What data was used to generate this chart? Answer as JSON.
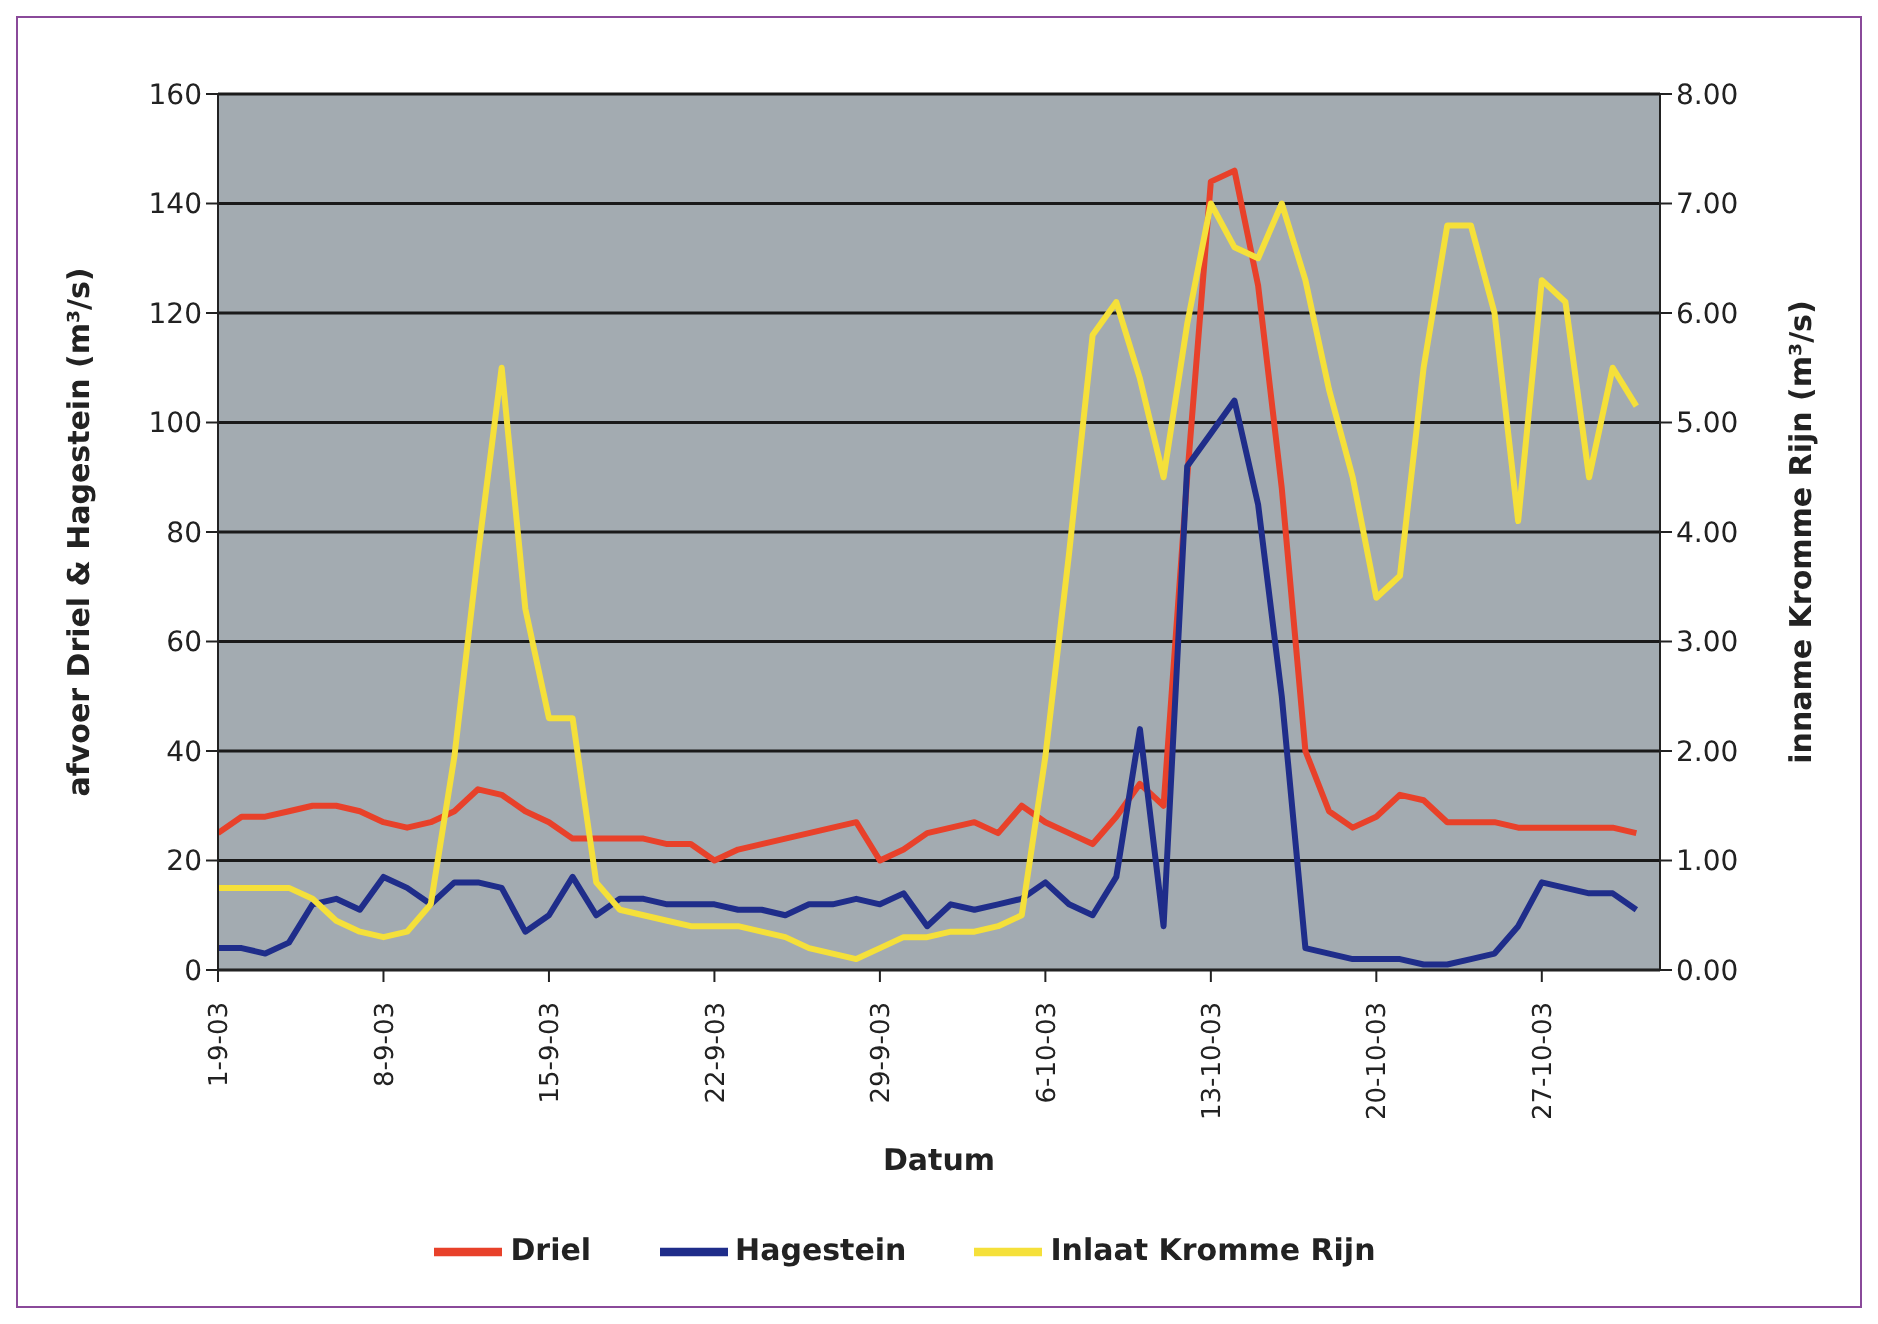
{
  "chart_data": {
    "type": "line",
    "xlabel": "Datum",
    "ylabel": "afvoer Driel & Hagestein (m³/s)",
    "y2label": "inname Kromme Rijn (m³/s)",
    "x": [
      "--09-01",
      "--09-02",
      "--09-03",
      "--09-04",
      "--09-05",
      "--09-06",
      "--09-07",
      "--09-08",
      "--09-09",
      "--09-10",
      "--09-11",
      "--09-12",
      "--09-13",
      "--09-14",
      "--09-15",
      "--09-16",
      "--09-17",
      "--09-18",
      "--09-19",
      "--09-20",
      "--09-21",
      "--09-22",
      "--09-23",
      "--09-24",
      "--09-25",
      "--09-26",
      "--09-27",
      "--09-28",
      "--09-29",
      "--09-30",
      "--10-01",
      "--10-02",
      "--10-03",
      "--10-04",
      "--10-05",
      "--10-06",
      "--10-07",
      "--10-08",
      "--10-09",
      "--10-10",
      "--10-11",
      "--10-12",
      "--10-13",
      "--10-14",
      "--10-15",
      "--10-16",
      "--10-17",
      "--10-18",
      "--10-19",
      "--10-20",
      "--10-21",
      "--10-22",
      "--10-23",
      "--10-24",
      "--10-25",
      "--10-26",
      "--10-27",
      "--10-28",
      "--10-29",
      "--10-30",
      "--10-31"
    ],
    "series": [
      {
        "name": "Driel",
        "color": "#e8412a",
        "values": [
          25,
          28,
          28,
          29,
          30,
          30,
          29,
          27,
          26,
          27,
          29,
          33,
          32,
          29,
          27,
          24,
          24,
          24,
          24,
          23,
          23,
          20,
          22,
          23,
          24,
          25,
          26,
          27,
          20,
          22,
          25,
          26,
          27,
          25,
          30,
          27,
          25,
          23,
          28,
          34,
          30,
          90,
          144,
          146,
          125,
          88,
          40,
          29,
          26,
          28,
          32,
          31,
          27,
          27,
          27,
          26,
          26,
          26,
          26,
          26,
          25
        ]
      },
      {
        "name": "Hagestein",
        "color": "#1f2d8a",
        "values": [
          4,
          4,
          3,
          5,
          12,
          13,
          11,
          17,
          15,
          12,
          16,
          16,
          15,
          7,
          10,
          17,
          10,
          13,
          13,
          12,
          12,
          12,
          11,
          11,
          10,
          12,
          12,
          13,
          12,
          14,
          8,
          12,
          11,
          12,
          13,
          16,
          12,
          10,
          17,
          44,
          8,
          92,
          98,
          104,
          85,
          50,
          4,
          3,
          2,
          2,
          2,
          1,
          1,
          2,
          3,
          8,
          16,
          15,
          14,
          14,
          11
        ]
      },
      {
        "name": "Inlaat Kromme Rijn",
        "color": "#f5e03a",
        "axis": "y2",
        "values": [
          0.75,
          0.75,
          0.75,
          0.75,
          0.65,
          0.45,
          0.35,
          0.3,
          0.35,
          0.6,
          1.95,
          3.8,
          5.5,
          3.3,
          2.3,
          2.3,
          0.8,
          0.55,
          0.5,
          0.45,
          0.4,
          0.4,
          0.4,
          0.35,
          0.3,
          0.2,
          0.15,
          0.1,
          0.2,
          0.3,
          0.3,
          0.35,
          0.35,
          0.4,
          0.5,
          1.95,
          3.8,
          5.8,
          6.1,
          5.4,
          4.5,
          5.9,
          7.0,
          6.6,
          6.5,
          7.0,
          6.3,
          5.3,
          4.5,
          3.4,
          3.6,
          5.5,
          6.8,
          6.8,
          6.0,
          4.1,
          6.3,
          6.1,
          4.5,
          5.5,
          5.15
        ]
      }
    ],
    "xlim": [
      "--09-01",
      "--11-01"
    ],
    "xticks": [
      {
        "value": "--09-01",
        "label": "1-9-03"
      },
      {
        "value": "--09-08",
        "label": "8-9-03"
      },
      {
        "value": "--09-15",
        "label": "15-9-03"
      },
      {
        "value": "--09-22",
        "label": "22-9-03"
      },
      {
        "value": "--09-29",
        "label": "29-9-03"
      },
      {
        "value": "--10-06",
        "label": "6-10-03"
      },
      {
        "value": "--10-13",
        "label": "13-10-03"
      },
      {
        "value": "--10-20",
        "label": "20-10-03"
      },
      {
        "value": "--10-27",
        "label": "27-10-03"
      }
    ],
    "ylim": [
      0,
      160
    ],
    "yticks": [
      0,
      20,
      40,
      60,
      80,
      100,
      120,
      140,
      160
    ],
    "y2lim": [
      0,
      8
    ],
    "y2ticks": [
      {
        "value": 0,
        "label": "0.00"
      },
      {
        "value": 1,
        "label": "1.00"
      },
      {
        "value": 2,
        "label": "2.00"
      },
      {
        "value": 3,
        "label": "3.00"
      },
      {
        "value": 4,
        "label": "4.00"
      },
      {
        "value": 5,
        "label": "5.00"
      },
      {
        "value": 6,
        "label": "6.00"
      },
      {
        "value": 7,
        "label": "7.00"
      },
      {
        "value": 8,
        "label": "8.00"
      }
    ],
    "grid": "y",
    "legend": "bottom",
    "marker": "none",
    "line_style": "solid"
  }
}
